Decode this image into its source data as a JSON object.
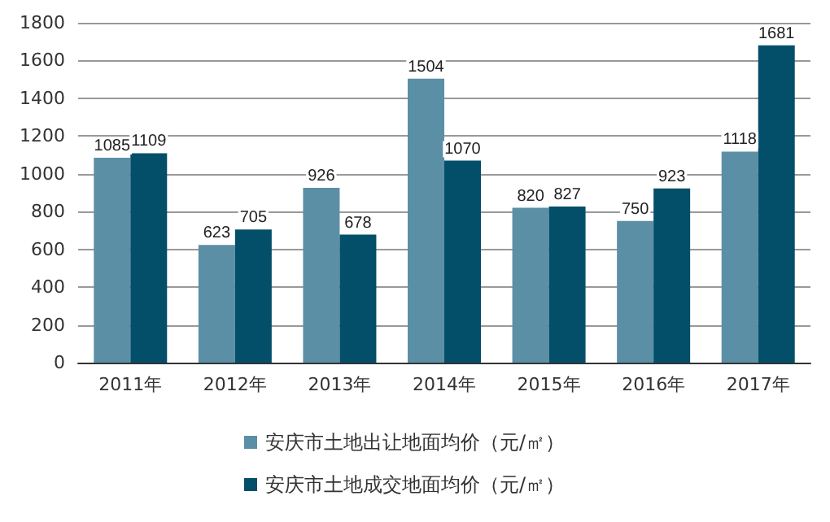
{
  "chart_data": {
    "type": "bar",
    "categories": [
      "2011年",
      "2012年",
      "2013年",
      "2014年",
      "2015年",
      "2016年",
      "2017年"
    ],
    "series": [
      {
        "name": "安庆市土地出让地面均价（元/㎡）",
        "color": "#5b8fa6",
        "values": [
          1085,
          623,
          926,
          1504,
          820,
          750,
          1118
        ]
      },
      {
        "name": "安庆市土地成交地面均价（元/㎡）",
        "color": "#034f6a",
        "values": [
          1109,
          705,
          678,
          1070,
          827,
          923,
          1681
        ]
      }
    ],
    "ylim": [
      0,
      1800
    ],
    "yticks": [
      0,
      200,
      400,
      600,
      800,
      1000,
      1200,
      1400,
      1600,
      1800
    ],
    "grid": "y",
    "legend": "bottom",
    "data_labels": true
  }
}
